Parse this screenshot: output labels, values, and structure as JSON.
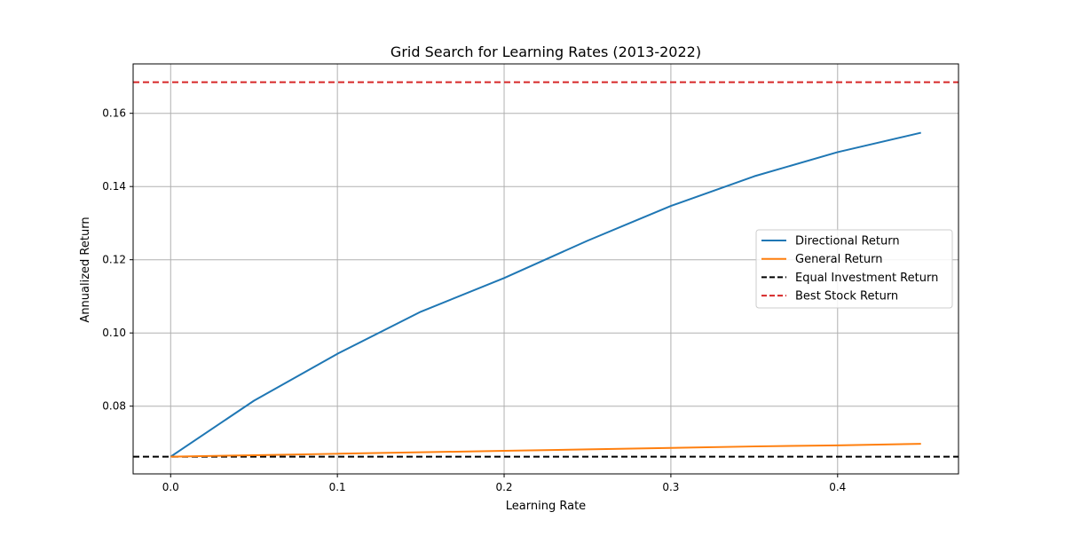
{
  "chart_data": {
    "type": "line",
    "title": "Grid Search for Learning Rates (2013-2022)",
    "xlabel": "Learning Rate",
    "ylabel": "Annualized Return",
    "xlim": [
      -0.0225,
      0.4725
    ],
    "ylim": [
      0.0615,
      0.1735
    ],
    "xticks": [
      0.0,
      0.1,
      0.2,
      0.3,
      0.4
    ],
    "xtick_labels": [
      "0.0",
      "0.1",
      "0.2",
      "0.3",
      "0.4"
    ],
    "yticks": [
      0.08,
      0.1,
      0.12,
      0.14,
      0.16
    ],
    "ytick_labels": [
      "0.08",
      "0.10",
      "0.12",
      "0.14",
      "0.16"
    ],
    "grid": true,
    "legend_position": "center-right",
    "x": [
      0.0,
      0.05,
      0.1,
      0.15,
      0.2,
      0.25,
      0.3,
      0.35,
      0.4,
      0.45
    ],
    "series": [
      {
        "name": "Directional Return",
        "color": "#1f77b4",
        "style": "solid",
        "values": [
          0.0662,
          0.0815,
          0.0943,
          0.1058,
          0.115,
          0.1252,
          0.1347,
          0.1428,
          0.1494,
          0.1547
        ]
      },
      {
        "name": "General Return",
        "color": "#ff7f0e",
        "style": "solid",
        "values": [
          0.0662,
          0.0666,
          0.067,
          0.0674,
          0.0678,
          0.0682,
          0.0686,
          0.069,
          0.0693,
          0.0697
        ]
      }
    ],
    "reference_lines": [
      {
        "name": "Equal Investment Return",
        "color": "#000000",
        "style": "dashed",
        "y": 0.0662
      },
      {
        "name": "Best Stock Return",
        "color": "#d62728",
        "style": "dashed",
        "y": 0.1685
      }
    ]
  }
}
